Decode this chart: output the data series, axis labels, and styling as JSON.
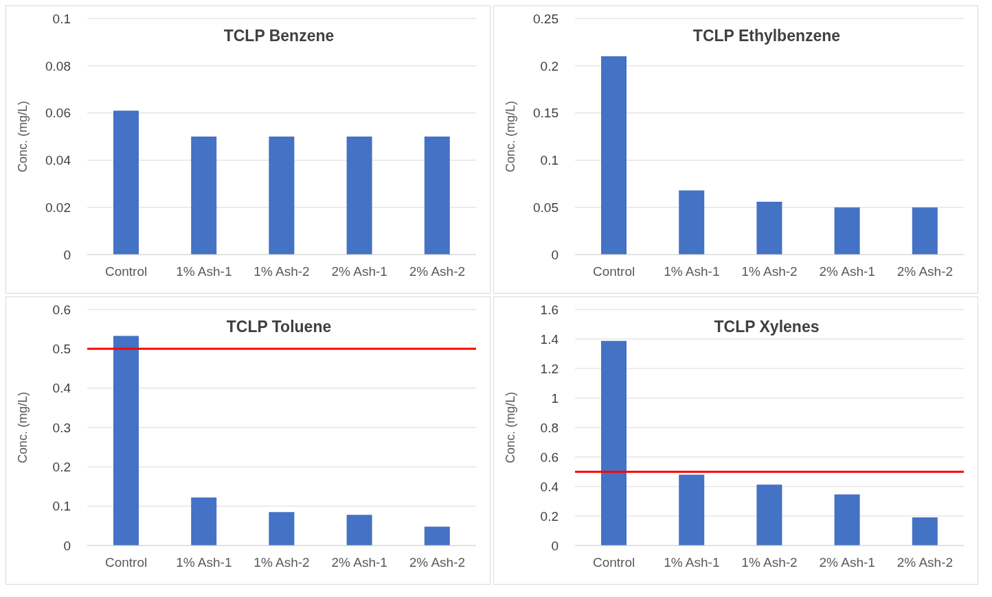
{
  "chart_data": [
    {
      "type": "bar",
      "title": "TCLP Benzene",
      "ylabel": "Conc. (mg/L)",
      "categories": [
        "Control",
        "1% Ash-1",
        "1% Ash-2",
        "2% Ash-1",
        "2% Ash-2"
      ],
      "values": [
        0.061,
        0.05,
        0.05,
        0.05,
        0.05
      ],
      "color": "#4472c4",
      "ylim": [
        0,
        0.1
      ],
      "yticks": [
        0,
        0.02,
        0.04,
        0.06,
        0.08,
        0.1
      ],
      "grid": "y"
    },
    {
      "type": "bar",
      "title": "TCLP Ethylbenzene",
      "ylabel": "Conc. (mg/L)",
      "categories": [
        "Control",
        "1% Ash-1",
        "1% Ash-2",
        "2% Ash-1",
        "2% Ash-2"
      ],
      "values": [
        0.21,
        0.068,
        0.056,
        0.05,
        0.05
      ],
      "color": "#4472c4",
      "ylim": [
        0,
        0.25
      ],
      "yticks": [
        0,
        0.05,
        0.1,
        0.15,
        0.2,
        0.25
      ],
      "grid": "y"
    },
    {
      "type": "bar",
      "title": "TCLP Toluene",
      "ylabel": "Conc. (mg/L)",
      "categories": [
        "Control",
        "1% Ash-1",
        "1% Ash-2",
        "2% Ash-1",
        "2% Ash-2"
      ],
      "values": [
        0.533,
        0.122,
        0.085,
        0.078,
        0.048
      ],
      "color": "#4472c4",
      "ylim": [
        0,
        0.6
      ],
      "yticks": [
        0,
        0.1,
        0.2,
        0.3,
        0.4,
        0.5,
        0.6
      ],
      "grid": "y",
      "ref_lines": [
        {
          "axis": "y",
          "value": 0.5,
          "color": "#ff0000"
        }
      ]
    },
    {
      "type": "bar",
      "title": "TCLP Xylenes",
      "ylabel": "Conc. (mg/L)",
      "categories": [
        "Control",
        "1% Ash-1",
        "1% Ash-2",
        "2% Ash-1",
        "2% Ash-2"
      ],
      "values": [
        1.387,
        0.48,
        0.413,
        0.347,
        0.191
      ],
      "color": "#4472c4",
      "ylim": [
        0,
        1.6
      ],
      "yticks": [
        0,
        0.2,
        0.4,
        0.6,
        0.8,
        1,
        1.2,
        1.4,
        1.6
      ],
      "grid": "y",
      "ref_lines": [
        {
          "axis": "y",
          "value": 0.5,
          "color": "#ff0000"
        }
      ]
    }
  ]
}
